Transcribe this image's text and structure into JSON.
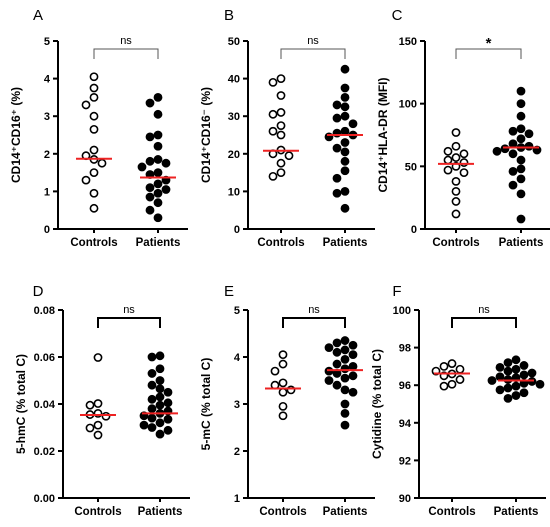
{
  "colors": {
    "median": "#ee2222",
    "marker_stroke": "#000000",
    "filled": "#000000",
    "open": "#ffffff"
  },
  "chart_data": [
    {
      "type": "scatter",
      "panel": "A",
      "ylabel": "CD14⁺CD16⁺ (%)",
      "ylim": [
        0,
        5
      ],
      "yticks": [
        "0",
        "1",
        "2",
        "3",
        "4",
        "5"
      ],
      "categories": [
        "Controls",
        "Patients"
      ],
      "significance": "ns",
      "series": [
        {
          "name": "Controls",
          "marker": "open",
          "median": 1.87,
          "values": [
            4.05,
            3.75,
            3.5,
            3.3,
            3.0,
            2.65,
            2.1,
            1.95,
            1.85,
            1.75,
            1.5,
            1.3,
            0.95,
            0.55
          ]
        },
        {
          "name": "Patients",
          "marker": "filled",
          "median": 1.37,
          "values": [
            3.5,
            3.35,
            3.05,
            2.5,
            2.45,
            2.2,
            1.85,
            1.8,
            1.75,
            1.65,
            1.5,
            1.45,
            1.3,
            1.2,
            1.1,
            1.05,
            0.95,
            0.85,
            0.7,
            0.5,
            0.3
          ]
        }
      ]
    },
    {
      "type": "scatter",
      "panel": "B",
      "ylabel": "CD14⁺CD16⁻ (%)",
      "ylim": [
        0,
        50
      ],
      "yticks": [
        "0",
        "10",
        "20",
        "30",
        "40",
        "50"
      ],
      "categories": [
        "Controls",
        "Patients"
      ],
      "significance": "ns",
      "series": [
        {
          "name": "Controls",
          "marker": "open",
          "median": 20.8,
          "values": [
            40.0,
            39.0,
            35.5,
            31.0,
            30.5,
            27.5,
            26.0,
            25.0,
            21.0,
            20.0,
            19.5,
            17.5,
            15.0,
            14.0
          ]
        },
        {
          "name": "Patients",
          "marker": "filled",
          "median": 25.0,
          "values": [
            42.5,
            37.5,
            35.0,
            33.0,
            32.5,
            30.0,
            29.5,
            28.0,
            26.0,
            25.5,
            25.0,
            24.5,
            23.0,
            21.5,
            20.5,
            18.0,
            15.5,
            13.5,
            10.0,
            9.5,
            5.5
          ]
        }
      ]
    },
    {
      "type": "scatter",
      "panel": "C",
      "ylabel": "CD14⁺HLA-DR (MFI)",
      "ylim": [
        0,
        150
      ],
      "yticks": [
        "0",
        "50",
        "100",
        "150"
      ],
      "categories": [
        "Controls",
        "Patients"
      ],
      "significance": "*",
      "series": [
        {
          "name": "Controls",
          "marker": "open",
          "median": 52,
          "values": [
            77,
            66,
            62,
            60,
            57,
            55,
            53,
            50,
            47,
            45,
            38,
            30,
            22,
            12
          ]
        },
        {
          "name": "Patients",
          "marker": "filled",
          "median": 65,
          "values": [
            110,
            100,
            90,
            80,
            78,
            76,
            72,
            68,
            66,
            65,
            64,
            63,
            62,
            60,
            55,
            48,
            46,
            40,
            35,
            28,
            8
          ]
        }
      ]
    },
    {
      "type": "scatter",
      "panel": "D",
      "ylabel": "5-hmC (% total C)",
      "ylim": [
        0,
        0.08
      ],
      "yticks": [
        "0.00",
        "0.02",
        "0.04",
        "0.06",
        "0.08"
      ],
      "categories": [
        "Controls",
        "Patients"
      ],
      "significance": "ns",
      "series": [
        {
          "name": "Controls",
          "marker": "open",
          "median": 0.0353,
          "values": [
            0.0598,
            0.0402,
            0.0395,
            0.036,
            0.0355,
            0.0348,
            0.031,
            0.0298,
            0.0268
          ]
        },
        {
          "name": "Patients",
          "marker": "filled",
          "median": 0.036,
          "values": [
            0.0605,
            0.06,
            0.055,
            0.053,
            0.05,
            0.048,
            0.0465,
            0.045,
            0.043,
            0.042,
            0.0405,
            0.0395,
            0.038,
            0.037,
            0.036,
            0.035,
            0.034,
            0.0335,
            0.032,
            0.031,
            0.03,
            0.0288,
            0.0272
          ]
        }
      ]
    },
    {
      "type": "scatter",
      "panel": "E",
      "ylabel": "5-mC (% total C)",
      "ylim": [
        1,
        5
      ],
      "yticks": [
        "1",
        "2",
        "3",
        "4",
        "5"
      ],
      "categories": [
        "Controls",
        "Patients"
      ],
      "significance": "ns",
      "series": [
        {
          "name": "Controls",
          "marker": "open",
          "median": 3.33,
          "values": [
            4.05,
            3.85,
            3.7,
            3.45,
            3.4,
            3.3,
            3.25,
            2.95,
            2.75
          ]
        },
        {
          "name": "Patients",
          "marker": "filled",
          "median": 3.72,
          "values": [
            4.35,
            4.3,
            4.25,
            4.2,
            4.15,
            4.1,
            4.05,
            3.95,
            3.85,
            3.8,
            3.75,
            3.7,
            3.65,
            3.6,
            3.55,
            3.5,
            3.4,
            3.3,
            3.25,
            3.0,
            2.8,
            2.55
          ]
        }
      ]
    },
    {
      "type": "scatter",
      "panel": "F",
      "ylabel": "Cytidine (% total C)",
      "ylim": [
        90,
        100
      ],
      "yticks": [
        "90",
        "92",
        "94",
        "96",
        "98",
        "100"
      ],
      "categories": [
        "Controls",
        "Patients"
      ],
      "significance": "ns",
      "series": [
        {
          "name": "Controls",
          "marker": "open",
          "median": 96.62,
          "values": [
            97.15,
            97.0,
            96.85,
            96.75,
            96.6,
            96.5,
            96.3,
            96.05,
            95.95
          ]
        },
        {
          "name": "Patients",
          "marker": "filled",
          "median": 96.25,
          "values": [
            97.35,
            97.2,
            97.05,
            96.95,
            96.85,
            96.75,
            96.65,
            96.55,
            96.45,
            96.4,
            96.3,
            96.25,
            96.2,
            96.1,
            96.05,
            95.95,
            95.85,
            95.75,
            95.6,
            95.45,
            95.3
          ]
        }
      ]
    }
  ]
}
